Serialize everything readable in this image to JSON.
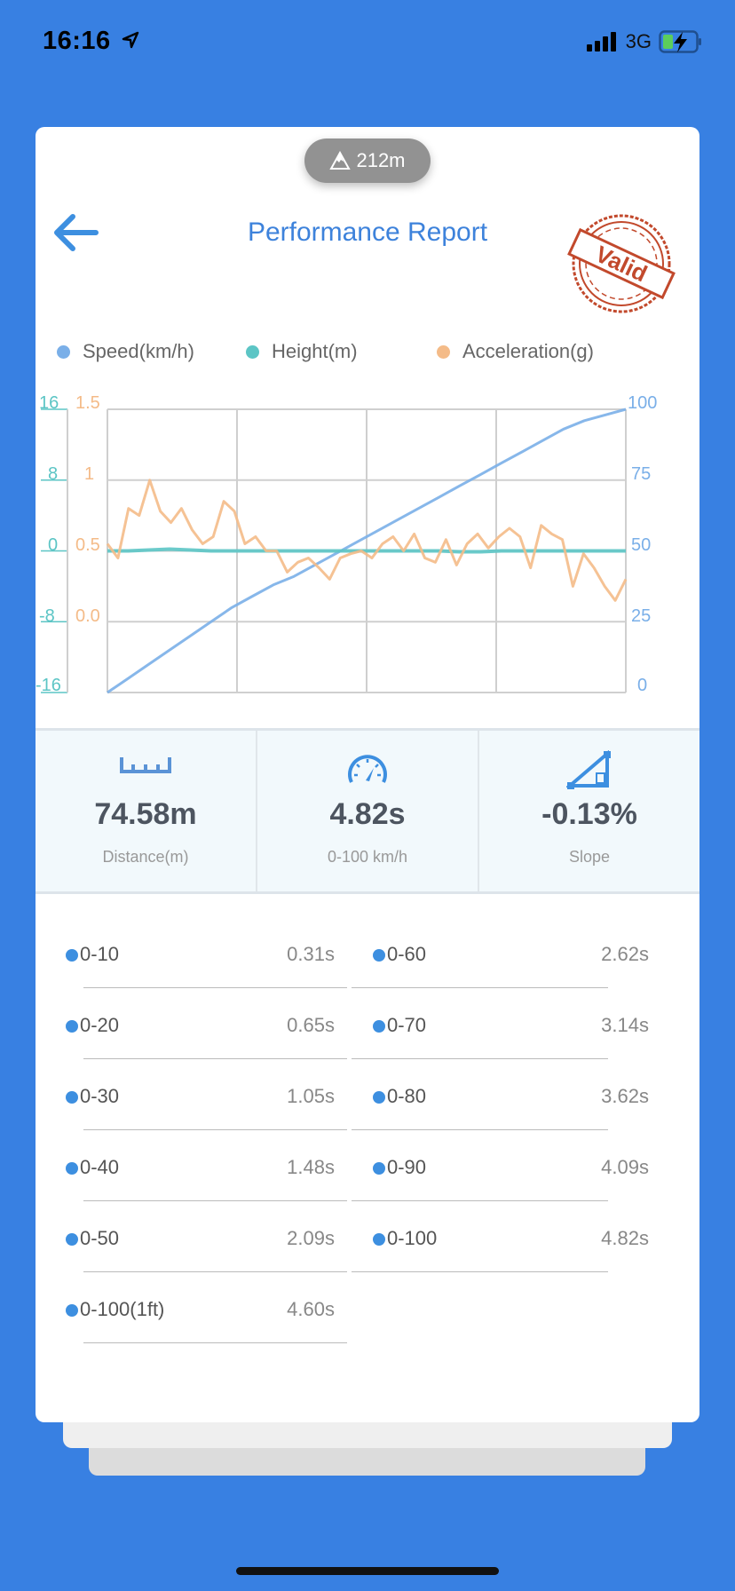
{
  "status_bar": {
    "time": "16:16",
    "network": "3G",
    "icons": [
      "location-arrow-icon",
      "signal-icon",
      "battery-charging-icon"
    ]
  },
  "header": {
    "altitude": "212m",
    "title": "Performance Report",
    "stamp_text": "Valid",
    "back_icon": "arrow-left-icon"
  },
  "colors": {
    "accent": "#3d82db",
    "speed": "#7aafe8",
    "height": "#5cc5c5",
    "acceleration": "#f4bb88",
    "stamp": "#c2492c",
    "background": "#3880e2"
  },
  "chart_data": {
    "type": "line",
    "grid": true,
    "legend_placement": "top",
    "legend": [
      "Speed(km/h)",
      "Height(m)",
      "Acceleration(g)"
    ],
    "axes": {
      "height_left": {
        "ticks": [
          "16",
          "8",
          "0",
          "-8",
          "-16"
        ],
        "range": [
          -16,
          16
        ]
      },
      "acceleration_left": {
        "ticks": [
          "1.5",
          "1",
          "0.5",
          "0.0"
        ],
        "range": [
          -0.5,
          1.5
        ]
      },
      "speed_right": {
        "ticks": [
          "100",
          "75",
          "50",
          "25",
          "0"
        ],
        "range": [
          0,
          100
        ]
      }
    },
    "series": [
      {
        "name": "Speed(km/h)",
        "axis": "speed_right",
        "values": [
          0,
          5,
          10,
          15,
          20,
          25,
          30,
          34,
          38,
          41,
          45,
          49,
          53,
          57,
          61,
          65,
          69,
          73,
          77,
          81,
          85,
          89,
          93,
          96,
          98,
          100
        ]
      },
      {
        "name": "Height(m)",
        "axis": "height_left",
        "values": [
          0,
          0,
          0.1,
          0.2,
          0.1,
          0,
          0,
          0,
          0,
          0,
          0,
          0,
          0,
          0,
          0,
          0,
          0,
          -0.1,
          -0.1,
          0,
          0,
          0,
          0,
          0,
          0,
          0
        ]
      },
      {
        "name": "Acceleration(g)",
        "axis": "acceleration_left",
        "values": [
          0.55,
          0.45,
          0.8,
          0.75,
          1.0,
          0.78,
          0.7,
          0.8,
          0.65,
          0.55,
          0.6,
          0.85,
          0.78,
          0.55,
          0.6,
          0.5,
          0.5,
          0.35,
          0.42,
          0.45,
          0.38,
          0.3,
          0.45,
          0.48,
          0.5,
          0.45,
          0.55,
          0.6,
          0.5,
          0.62,
          0.45,
          0.42,
          0.58,
          0.4,
          0.55,
          0.62,
          0.52,
          0.6,
          0.66,
          0.6,
          0.38,
          0.68,
          0.62,
          0.58,
          0.25,
          0.48,
          0.38,
          0.25,
          0.15,
          0.3
        ]
      }
    ]
  },
  "stats": [
    {
      "icon": "ruler-icon",
      "value": "74.58m",
      "label": "Distance(m)"
    },
    {
      "icon": "speedometer-icon",
      "value": "4.82s",
      "label": "0-100 km/h"
    },
    {
      "icon": "slope-icon",
      "value": "-0.13%",
      "label": "Slope"
    }
  ],
  "splits_left": [
    {
      "label": "0-10",
      "value": "0.31s"
    },
    {
      "label": "0-20",
      "value": "0.65s"
    },
    {
      "label": "0-30",
      "value": "1.05s"
    },
    {
      "label": "0-40",
      "value": "1.48s"
    },
    {
      "label": "0-50",
      "value": "2.09s"
    },
    {
      "label": "0-100(1ft)",
      "value": "4.60s"
    }
  ],
  "splits_right": [
    {
      "label": "0-60",
      "value": "2.62s"
    },
    {
      "label": "0-70",
      "value": "3.14s"
    },
    {
      "label": "0-80",
      "value": "3.62s"
    },
    {
      "label": "0-90",
      "value": "4.09s"
    },
    {
      "label": "0-100",
      "value": "4.82s"
    }
  ]
}
